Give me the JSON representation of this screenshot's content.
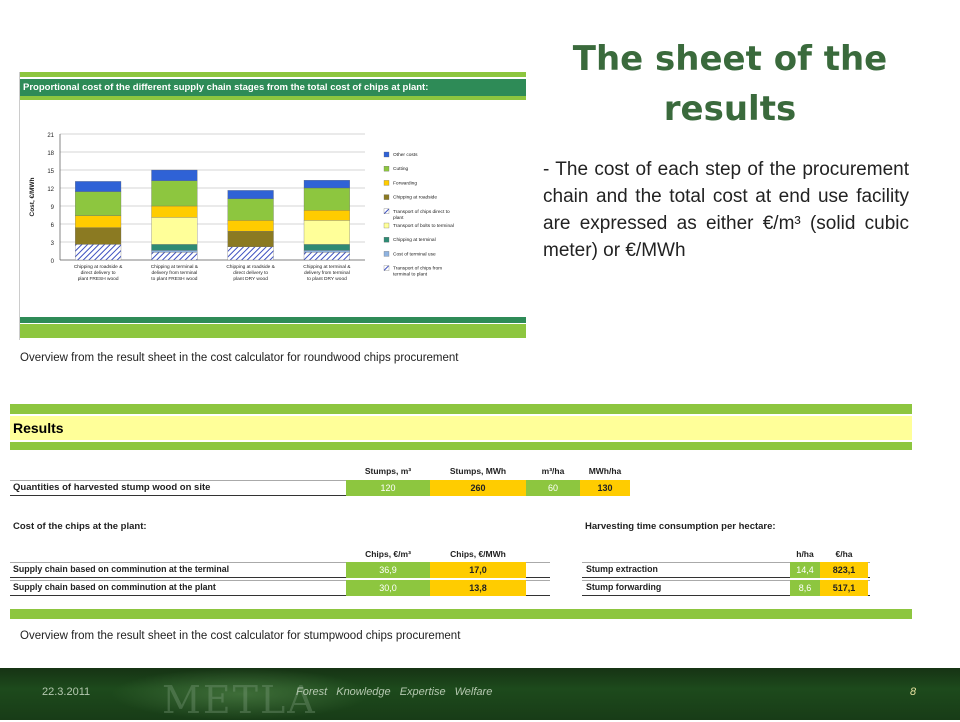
{
  "slide": {
    "title": "The sheet of the results",
    "bullet": "- The cost of each step of the procurement chain and the total cost at end use facility are expressed as either €/m³ (solid cubic meter) or €/MWh",
    "caption1": "Overview from the result sheet in the cost calculator  for roundwood chips procurement",
    "caption2": "Overview from the result sheet in the cost calculator  for stumpwood chips procurement"
  },
  "chart_panel": {
    "header": "Proportional cost of the different supply chain stages from the total cost of chips at plant:"
  },
  "chart_data": {
    "type": "bar",
    "stacked": true,
    "ylabel": "Cost, €/MWh",
    "ylim": [
      0,
      21
    ],
    "yticks": [
      0,
      3,
      6,
      9,
      12,
      15,
      18,
      21
    ],
    "categories": [
      "Chipping at roadside & direct delivery to plant FRESH wood",
      "Chipping at terminal & delivery from terminal to plant FRESH wood",
      "Chipping at roadside & direct delivery to plant DRY wood",
      "Chipping at terminal & delivery from terminal to plant DRY wood"
    ],
    "series": [
      {
        "name": "Transport of chips direct to plant",
        "color": "#5b6fd6",
        "pattern": "hatch",
        "values": [
          2.6,
          0,
          2.2,
          0
        ]
      },
      {
        "name": "Transport of chips from terminal to plant",
        "color": "#5b6fd6",
        "pattern": "hatch",
        "values": [
          0,
          1.3,
          0,
          1.3
        ]
      },
      {
        "name": "Cost of terminal use",
        "color": "#8fb3e0",
        "values": [
          0,
          0.3,
          0,
          0.3
        ]
      },
      {
        "name": "Chipping at terminal",
        "color": "#2e8b74",
        "values": [
          0,
          1.0,
          0,
          1.0
        ]
      },
      {
        "name": "Transport of bolts to terminal",
        "color": "#ffff99",
        "values": [
          0,
          4.5,
          0,
          4.0
        ]
      },
      {
        "name": "Chipping at roadside",
        "color": "#8b7a22",
        "values": [
          2.8,
          0,
          2.6,
          0
        ]
      },
      {
        "name": "Forwarding",
        "color": "#ffcc00",
        "values": [
          2.0,
          1.9,
          1.8,
          1.7
        ]
      },
      {
        "name": "Cutting",
        "color": "#8dc63f",
        "values": [
          4.0,
          4.2,
          3.6,
          3.7
        ]
      },
      {
        "name": "Other costs",
        "color": "#2f62d6",
        "values": [
          1.7,
          1.8,
          1.4,
          1.3
        ]
      }
    ],
    "legend": [
      "Other costs",
      "Cutting",
      "Forwarding",
      "Chipping at roadside",
      "Transport of chips direct to plant",
      "Transport of bolts to terminal",
      "Chipping at terminal",
      "Cost of terminal use",
      "Transport of chips from terminal to plant"
    ],
    "legend_colors": [
      "#2f62d6",
      "#8dc63f",
      "#ffcc00",
      "#8b7a22",
      "#5b6fd6",
      "#ffff99",
      "#2e8b74",
      "#8fb3e0",
      "#5b6fd6"
    ],
    "legend_placement": "right"
  },
  "results": {
    "title": "Results",
    "q_headers": [
      "Stumps, m³",
      "Stumps, MWh",
      "m³/ha",
      "MWh/ha"
    ],
    "q_label": "Quantities of harvested stump wood on site",
    "q_values": [
      "120",
      "260",
      "60",
      "130"
    ],
    "cost_title": "Cost of the chips at the plant:",
    "cost_headers": [
      "Chips, €/m³",
      "Chips, €/MWh"
    ],
    "cost_rows": [
      {
        "label": "Supply chain based on comminution at the terminal",
        "v1": "36,9",
        "v2": "17,0"
      },
      {
        "label": "Supply chain based on comminution at the plant",
        "v1": "30,0",
        "v2": "13,8"
      }
    ],
    "time_title": "Harvesting time consumption per hectare:",
    "time_headers": [
      "h/ha",
      "€/ha"
    ],
    "time_rows": [
      {
        "label": "Stump extraction",
        "v1": "14,4",
        "v2": "823,1"
      },
      {
        "label": "Stump forwarding",
        "v1": "8,6",
        "v2": "517,1"
      }
    ]
  },
  "footer": {
    "date": "22.3.2011",
    "logo": "METLA",
    "tagline": "Forest  Knowledge  Expertise  Welfare",
    "page": "8"
  }
}
